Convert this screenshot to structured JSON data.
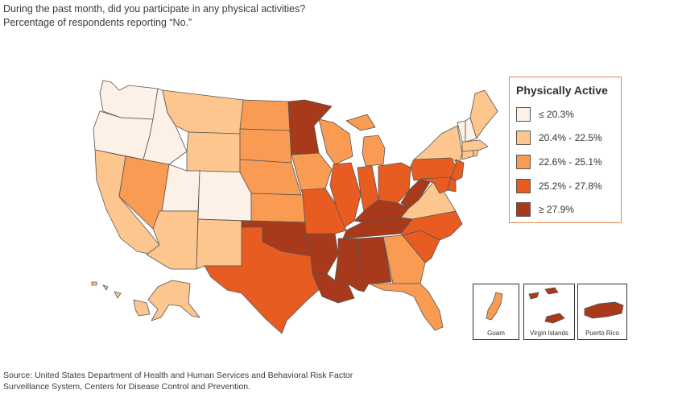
{
  "title": {
    "line1": "During the past month, did you participate in any physical activities?",
    "line2": "Percentage of respondents reporting “No.”"
  },
  "legend": {
    "title": "Physically Active",
    "items": [
      {
        "label": "≤ 20.3%",
        "color": "#fdf0e6"
      },
      {
        "label": "20.4% - 22.5%",
        "color": "#fdc68f"
      },
      {
        "label": "22.6% - 25.1%",
        "color": "#f99b52"
      },
      {
        "label": "25.2% - 27.8%",
        "color": "#e85c22"
      },
      {
        "label": "≥ 27.9%",
        "color": "#a83a1b"
      }
    ]
  },
  "insets": [
    {
      "label": "Guam",
      "class": 2
    },
    {
      "label": "Virgin Islands",
      "class": 4
    },
    {
      "label": "Puerto Rico",
      "class": 4
    }
  ],
  "states": {
    "WA": 0,
    "OR": 0,
    "ID": 0,
    "UT": 0,
    "CO": 0,
    "VT": 0,
    "NH": 0,
    "CA": 1,
    "NV": 2,
    "AZ": 1,
    "MT": 1,
    "WY": 1,
    "NM": 1,
    "AK": 1,
    "ME": 1,
    "NY": 1,
    "MA": 1,
    "CT": 1,
    "VA": 1,
    "HI": 1,
    "RI": 1,
    "ND": 2,
    "SD": 2,
    "NE": 2,
    "KS": 2,
    "IA": 2,
    "WI": 2,
    "MI": 2,
    "GA": 2,
    "FL": 2,
    "MN": 4,
    "OK": 4,
    "AR": 4,
    "LA": 4,
    "MS": 4,
    "AL": 4,
    "TN": 4,
    "KY": 4,
    "WV": 4,
    "TX": 3,
    "MO": 3,
    "IL": 3,
    "IN": 3,
    "OH": 3,
    "PA": 3,
    "NJ": 3,
    "MD": 3,
    "DE": 3,
    "NC": 3,
    "SC": 3
  },
  "source": {
    "line1": "Source: United States Department of Health and Human Services and Behavioral Risk Factor",
    "line2": "Surveillance System, Centers for Disease Control and Prevention."
  }
}
